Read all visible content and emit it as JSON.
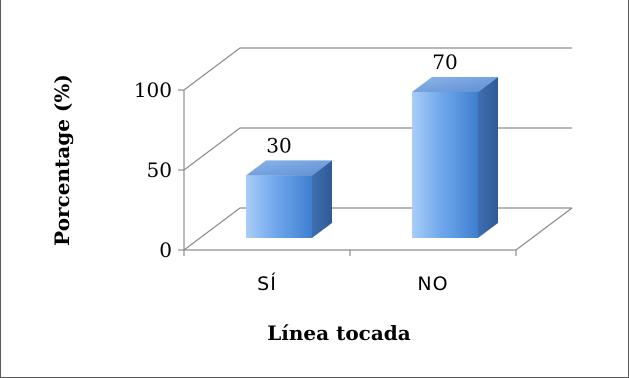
{
  "chart_data": {
    "type": "bar",
    "categories": [
      "SÍ",
      "NO"
    ],
    "values": [
      30,
      70
    ],
    "data_labels": [
      "30",
      "70"
    ],
    "ylabel": "Porcentage (%)",
    "xlabel": "Línea tocada",
    "ylim": [
      0,
      100
    ],
    "yticks": [
      0,
      50,
      100
    ],
    "ytick_labels": [
      "0",
      "50",
      "100"
    ],
    "grid": true,
    "legend": "none",
    "bar_color": "#5b9bd5"
  }
}
